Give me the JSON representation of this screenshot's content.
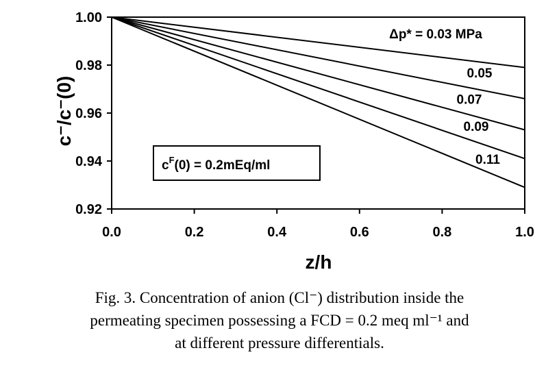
{
  "chart_data": {
    "type": "line",
    "xlabel": "z/h",
    "ylabel": "c⁻/c⁻(0)",
    "xlim": [
      0.0,
      1.0
    ],
    "ylim": [
      0.92,
      1.0
    ],
    "x_ticks": [
      "0.0",
      "0.2",
      "0.4",
      "0.6",
      "0.8",
      "1.0"
    ],
    "y_ticks": [
      "1.00",
      "0.98",
      "0.96",
      "0.94",
      "0.92"
    ],
    "grid": false,
    "legend_title": "Δp*  = 0.03 MPa",
    "series": [
      {
        "name": "0.03",
        "x": [
          0.0,
          1.0
        ],
        "y": [
          1.0,
          0.979
        ]
      },
      {
        "name": "0.05",
        "x": [
          0.0,
          1.0
        ],
        "y": [
          1.0,
          0.966
        ]
      },
      {
        "name": "0.07",
        "x": [
          0.0,
          1.0
        ],
        "y": [
          1.0,
          0.953
        ]
      },
      {
        "name": "0.09",
        "x": [
          0.0,
          1.0
        ],
        "y": [
          1.0,
          0.941
        ]
      },
      {
        "name": "0.11",
        "x": [
          0.0,
          1.0
        ],
        "y": [
          1.0,
          0.929
        ]
      }
    ],
    "annotation": "c^F(0)  = 0.2mEq/ml"
  },
  "annotation_box": {
    "prefix": "c",
    "superscript": "F",
    "rest": "(0)  = 0.2mEq/ml"
  },
  "caption": {
    "line1": "Fig. 3.  Concentration of anion (Cl⁻) distribution inside the",
    "line2": "permeating specimen possessing a FCD = 0.2 meq ml⁻¹ and",
    "line3": "at different pressure differentials."
  }
}
